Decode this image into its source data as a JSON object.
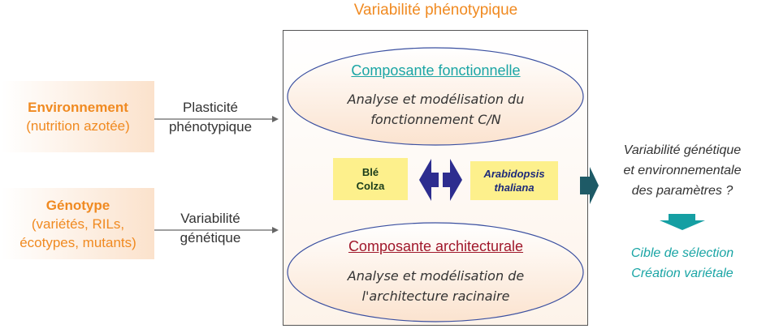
{
  "title": "Variabilité phénotypique",
  "inputs": [
    {
      "head": "Environnement",
      "lines": [
        "(nutrition azotée)"
      ]
    },
    {
      "head": "Génotype",
      "lines": [
        "(variétés, RILs,",
        "écotypes, mutants)"
      ]
    }
  ],
  "arrow_labels": [
    [
      "Plasticité",
      "phénotypique"
    ],
    [
      "Variabilité",
      "génétique"
    ]
  ],
  "components": {
    "functional": {
      "title": "Composante fonctionnelle",
      "lines": [
        "Analyse et modélisation du",
        "fonctionnement C/N"
      ],
      "color": "#1aa5a5"
    },
    "architectural": {
      "title": "Composante architecturale",
      "lines": [
        "Analyse et modélisation de",
        "l'architecture racinaire"
      ],
      "color": "#a0182b"
    }
  },
  "species": {
    "left": [
      "Blé",
      "Colza"
    ],
    "right": [
      "Arabidopsis",
      "thaliana"
    ]
  },
  "output": {
    "lines": [
      "Variabilité génétique",
      "et environnementale",
      "des paramètres ?"
    ],
    "targets": [
      "Cible de sélection",
      "Création variétale"
    ],
    "target_color": "#1aa5a5"
  },
  "colors": {
    "accent_orange": "#f08a21",
    "ellipse_border": "#3a4fa0",
    "exchange_arrow": "#2d2d8f",
    "output_arrow": "#1e5a66",
    "down_arrow": "#159fa3",
    "species_fill": "#fdf08c"
  }
}
